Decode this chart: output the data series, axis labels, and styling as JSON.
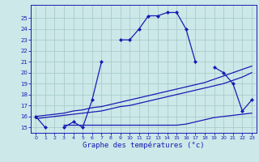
{
  "xlabel": "Graphe des températures (°c)",
  "bg_color": "#cce8e8",
  "grid_color": "#aacccc",
  "line_color": "#1a1ab4",
  "hours": [
    0,
    1,
    2,
    3,
    4,
    5,
    6,
    7,
    8,
    9,
    10,
    11,
    12,
    13,
    14,
    15,
    16,
    17,
    18,
    19,
    20,
    21,
    22,
    23
  ],
  "ylim": [
    14.5,
    26.2
  ],
  "yticks": [
    15,
    16,
    17,
    18,
    19,
    20,
    21,
    22,
    23,
    24,
    25
  ],
  "xlim": [
    -0.5,
    23.5
  ],
  "xticks": [
    0,
    1,
    2,
    3,
    4,
    5,
    6,
    7,
    8,
    9,
    10,
    11,
    12,
    13,
    14,
    15,
    16,
    17,
    18,
    19,
    20,
    21,
    22,
    23
  ],
  "line_main": [
    16,
    15,
    null,
    15,
    15.5,
    15,
    17.5,
    21,
    null,
    23,
    23,
    24,
    25.2,
    25.2,
    25.5,
    25.5,
    24,
    21,
    null,
    20.5,
    20,
    19,
    16.5,
    17.5
  ],
  "line_flat": [
    null,
    null,
    null,
    15.2,
    15.2,
    15.2,
    15.2,
    15.2,
    15.2,
    15.2,
    15.2,
    15.2,
    15.2,
    15.2,
    15.2,
    15.2,
    15.3,
    15.5,
    15.7,
    15.9,
    16,
    16.1,
    16.2,
    16.3
  ],
  "line_trend1": [
    15.8,
    15.9,
    16.0,
    16.1,
    16.2,
    16.3,
    16.4,
    16.5,
    16.7,
    16.9,
    17.0,
    17.2,
    17.4,
    17.6,
    17.8,
    18.0,
    18.2,
    18.4,
    18.6,
    18.8,
    19.0,
    19.3,
    19.6,
    20.0
  ],
  "line_trend2": [
    16.0,
    16.1,
    16.2,
    16.3,
    16.5,
    16.6,
    16.8,
    16.9,
    17.1,
    17.3,
    17.5,
    17.7,
    17.9,
    18.1,
    18.3,
    18.5,
    18.7,
    18.9,
    19.1,
    19.4,
    19.7,
    20.0,
    20.3,
    20.6
  ]
}
